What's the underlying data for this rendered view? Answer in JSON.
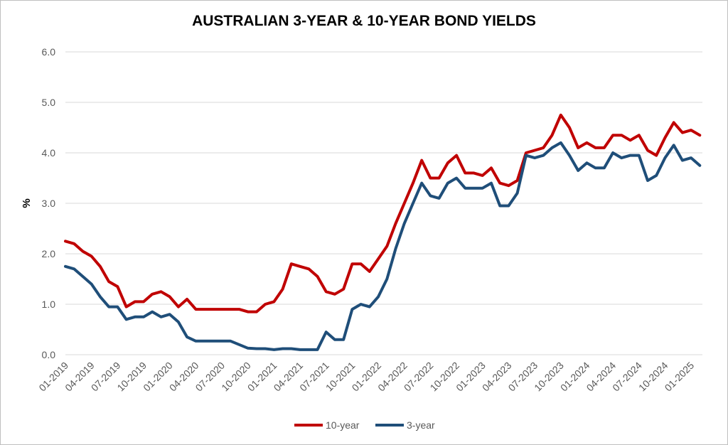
{
  "chart_data": {
    "type": "line",
    "title": "AUSTRALIAN 3-YEAR & 10-YEAR BOND YIELDS",
    "xlabel": "",
    "ylabel": "%",
    "ylim": [
      0,
      6
    ],
    "yticks": [
      "0.0",
      "1.0",
      "2.0",
      "3.0",
      "4.0",
      "5.0",
      "6.0"
    ],
    "xticks": [
      "01-2019",
      "04-2019",
      "07-2019",
      "10-2019",
      "01-2020",
      "04-2020",
      "07-2020",
      "10-2020",
      "01-2021",
      "04-2021",
      "07-2021",
      "10-2021",
      "01-2022",
      "04-2022",
      "07-2022",
      "10-2022",
      "01-2023",
      "04-2023",
      "07-2023",
      "10-2023",
      "01-2024",
      "04-2024",
      "07-2024",
      "10-2024",
      "01-2025"
    ],
    "grid": true,
    "legend": "bottom",
    "x": [
      "2019-01",
      "2019-02",
      "2019-03",
      "2019-04",
      "2019-05",
      "2019-06",
      "2019-07",
      "2019-08",
      "2019-09",
      "2019-10",
      "2019-11",
      "2019-12",
      "2020-01",
      "2020-02",
      "2020-03",
      "2020-04",
      "2020-05",
      "2020-06",
      "2020-07",
      "2020-08",
      "2020-09",
      "2020-10",
      "2020-11",
      "2020-12",
      "2021-01",
      "2021-02",
      "2021-03",
      "2021-04",
      "2021-05",
      "2021-06",
      "2021-07",
      "2021-08",
      "2021-09",
      "2021-10",
      "2021-11",
      "2021-12",
      "2022-01",
      "2022-02",
      "2022-03",
      "2022-04",
      "2022-05",
      "2022-06",
      "2022-07",
      "2022-08",
      "2022-09",
      "2022-10",
      "2022-11",
      "2022-12",
      "2023-01",
      "2023-02",
      "2023-03",
      "2023-04",
      "2023-05",
      "2023-06",
      "2023-07",
      "2023-08",
      "2023-09",
      "2023-10",
      "2023-11",
      "2023-12",
      "2024-01",
      "2024-02",
      "2024-03",
      "2024-04",
      "2024-05",
      "2024-06",
      "2024-07",
      "2024-08",
      "2024-09",
      "2024-10",
      "2024-11",
      "2024-12",
      "2025-01",
      "2025-02"
    ],
    "series": [
      {
        "name": "10-year",
        "color": "#c00000",
        "values": [
          2.25,
          2.2,
          2.05,
          1.95,
          1.75,
          1.45,
          1.35,
          0.95,
          1.05,
          1.05,
          1.2,
          1.25,
          1.15,
          0.95,
          1.1,
          0.9,
          0.9,
          0.9,
          0.9,
          0.9,
          0.9,
          0.85,
          0.85,
          1.0,
          1.05,
          1.3,
          1.8,
          1.75,
          1.7,
          1.55,
          1.25,
          1.2,
          1.3,
          1.8,
          1.8,
          1.65,
          1.9,
          2.15,
          2.6,
          3.0,
          3.4,
          3.85,
          3.5,
          3.5,
          3.8,
          3.95,
          3.6,
          3.6,
          3.55,
          3.7,
          3.4,
          3.35,
          3.45,
          4.0,
          4.05,
          4.1,
          4.35,
          4.75,
          4.5,
          4.1,
          4.2,
          4.1,
          4.1,
          4.35,
          4.35,
          4.25,
          4.35,
          4.05,
          3.95,
          4.3,
          4.6,
          4.4,
          4.45,
          4.35
        ]
      },
      {
        "name": "3-year",
        "color": "#1f4e79",
        "values": [
          1.75,
          1.7,
          1.55,
          1.4,
          1.15,
          0.95,
          0.95,
          0.7,
          0.75,
          0.75,
          0.85,
          0.75,
          0.8,
          0.65,
          0.35,
          0.27,
          0.27,
          0.27,
          0.27,
          0.27,
          0.2,
          0.13,
          0.12,
          0.12,
          0.1,
          0.12,
          0.12,
          0.1,
          0.1,
          0.1,
          0.45,
          0.3,
          0.3,
          0.9,
          1.0,
          0.95,
          1.15,
          1.5,
          2.1,
          2.6,
          3.0,
          3.4,
          3.15,
          3.1,
          3.4,
          3.5,
          3.3,
          3.3,
          3.3,
          3.4,
          2.95,
          2.95,
          3.2,
          3.95,
          3.9,
          3.95,
          4.1,
          4.2,
          3.95,
          3.65,
          3.8,
          3.7,
          3.7,
          4.0,
          3.9,
          3.95,
          3.95,
          3.45,
          3.55,
          3.9,
          4.15,
          3.85,
          3.9,
          3.75
        ]
      }
    ]
  }
}
